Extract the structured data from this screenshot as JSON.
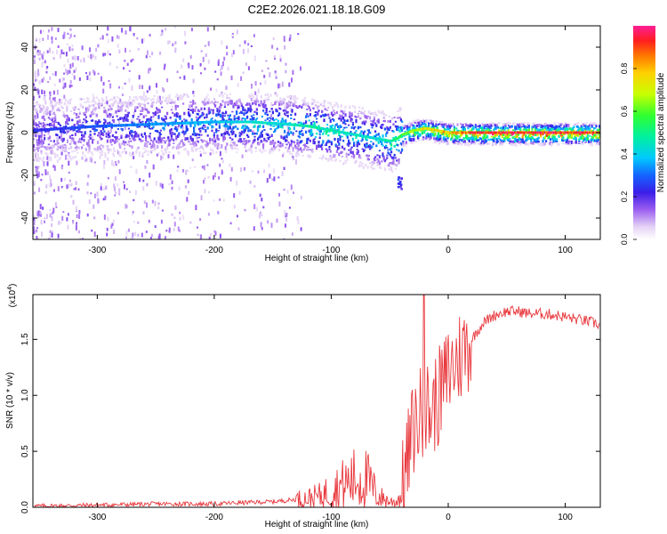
{
  "title": "C2E2.2026.021.18.18.G09",
  "chart_data": [
    {
      "type": "heatmap",
      "xlabel": "Height of straight line (km)",
      "ylabel": "Frequency (Hz)",
      "xlim": [
        -355,
        130
      ],
      "ylim": [
        -50,
        50
      ],
      "xticks": [
        -300,
        -200,
        -100,
        0,
        100
      ],
      "yticks": [
        -40,
        -20,
        0,
        20,
        40
      ],
      "colorbar": {
        "label": "Normalized spectral amplitude",
        "range": [
          0,
          1
        ],
        "ticks": [
          0.0,
          0.2,
          0.4,
          0.6,
          0.8
        ]
      },
      "ridge": {
        "description_points_x": [
          -355,
          -300,
          -250,
          -200,
          -170,
          -140,
          -120,
          -100,
          -80,
          -60,
          -50,
          -45,
          -40,
          -30,
          -20,
          -10,
          0,
          20,
          50,
          90,
          130
        ],
        "frequency_hz": [
          1,
          3,
          4,
          5,
          5,
          4,
          3,
          1,
          -1,
          -3,
          -4,
          -3,
          -1,
          1,
          2,
          1,
          0,
          0,
          0,
          0,
          0
        ],
        "peak_amplitude": [
          0.25,
          0.3,
          0.35,
          0.4,
          0.45,
          0.45,
          0.5,
          0.5,
          0.45,
          0.45,
          0.5,
          0.55,
          0.6,
          0.7,
          0.8,
          0.8,
          0.85,
          0.95,
          0.98,
          0.98,
          0.95
        ],
        "secondary_blob": {
          "x": -42,
          "frequency_hz": -23
        }
      }
    },
    {
      "type": "line",
      "xlabel": "Height of straight line (km)",
      "ylabel": "SNR (10 * v/v)",
      "scale_note": "(x10",
      "scale_exp": "4",
      "scale_close": ")",
      "xlim": [
        -355,
        130
      ],
      "ylim": [
        0,
        1.9
      ],
      "xticks": [
        -300,
        -200,
        -100,
        0,
        100
      ],
      "yticks": [
        0.0,
        0.5,
        1.0,
        1.5
      ],
      "series": [
        {
          "name": "SNR",
          "color": "#e8383d",
          "x": [
            -355,
            -300,
            -250,
            -200,
            -180,
            -150,
            -120,
            -110,
            -100,
            -90,
            -80,
            -70,
            -60,
            -50,
            -45,
            -40,
            -35,
            -30,
            -25,
            -20,
            -15,
            -10,
            -5,
            0,
            10,
            20,
            30,
            40,
            50,
            60,
            70,
            80,
            90,
            100,
            110,
            120,
            130
          ],
          "y": [
            0.01,
            0.02,
            0.03,
            0.03,
            0.04,
            0.05,
            0.08,
            0.1,
            0.15,
            0.2,
            0.25,
            0.25,
            0.1,
            0.05,
            0.05,
            0.1,
            0.4,
            0.7,
            0.8,
            0.9,
            0.85,
            0.95,
            1.05,
            1.2,
            1.35,
            1.5,
            1.65,
            1.72,
            1.75,
            1.75,
            1.73,
            1.73,
            1.72,
            1.7,
            1.68,
            1.66,
            1.63
          ],
          "spike": {
            "x": -21,
            "y": 1.9
          }
        }
      ]
    }
  ],
  "colors": {
    "snr_line": "#e8383d",
    "axis": "#000000"
  }
}
